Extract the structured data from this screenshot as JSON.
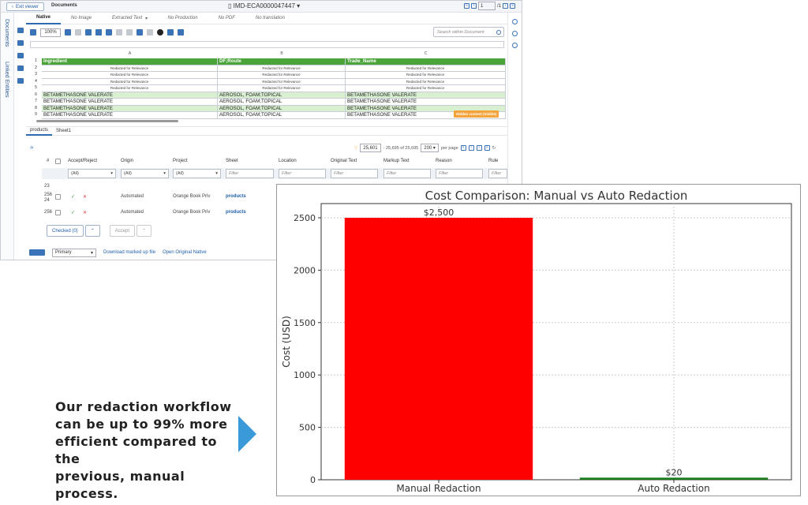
{
  "viewer": {
    "exit_label": "Exit viewer",
    "documents_label": "Documents",
    "doc_id": "IMD-ECA0000047447",
    "page_value": "1",
    "page_total": "/1",
    "left_rail": [
      "Documents",
      "Linked Entities"
    ],
    "tabs": [
      {
        "label": "Native",
        "active": true
      },
      {
        "label": "No Image"
      },
      {
        "label": "Extracted Text"
      },
      {
        "label": "No Production"
      },
      {
        "label": "No PDF"
      },
      {
        "label": "No translation"
      }
    ],
    "zoom": "100%",
    "search_placeholder": "Search within Document",
    "hidden_badge": "Hidden content (Visible)",
    "sheet": {
      "col_letters": [
        "A",
        "B",
        "C"
      ],
      "headers": [
        "Ingredient",
        "DF;Route",
        "Trade_Name"
      ],
      "redacted_text": "Redacted for Relevance",
      "rows": [
        {
          "n": "1",
          "kind": "header"
        },
        {
          "n": "2",
          "kind": "red"
        },
        {
          "n": "3",
          "kind": "red"
        },
        {
          "n": "4",
          "kind": "red"
        },
        {
          "n": "5",
          "kind": "red"
        },
        {
          "n": "6",
          "kind": "green",
          "a": "BETAMETHASONE VALERATE",
          "b": "AEROSOL, FOAM;TOPICAL",
          "c": "BETAMETHASONE VALERATE"
        },
        {
          "n": "7",
          "kind": "white",
          "a": "BETAMETHASONE VALERATE",
          "b": "AEROSOL, FOAM;TOPICAL",
          "c": "BETAMETHASONE VALERATE"
        },
        {
          "n": "8",
          "kind": "green",
          "a": "BETAMETHASONE VALERATE",
          "b": "AEROSOL, FOAM;TOPICAL",
          "c": "BETAMETHASONE VALERATE"
        },
        {
          "n": "9",
          "kind": "white",
          "a": "BETAMETHASONE VALERATE",
          "b": "AEROSOL, FOAM;TOPICAL",
          "c": "BETAMETHASONE VALERATE"
        }
      ]
    },
    "sheet_tabs": [
      "products",
      "Sheet1"
    ],
    "grid": {
      "page_value": "25,601",
      "range_text": "- 25,695 of 25,695",
      "per_page": "200",
      "per_page_label": "per page",
      "columns": [
        "#",
        "Accept/Reject",
        "Origin",
        "Project",
        "Sheet",
        "Location",
        "Original Text",
        "Markup Text",
        "Reason",
        "Rule"
      ],
      "filters": [
        "(All)",
        "(All)",
        "(All)",
        "Filter",
        "Filter",
        "Filter",
        "Filter",
        "Filter",
        "Filter"
      ],
      "rows": [
        {
          "num": "23",
          "origin": "",
          "project": "",
          "sheet": ""
        },
        {
          "num": "256 24",
          "origin": "Automated",
          "project": "Orange Book Priv",
          "sheet": "products"
        },
        {
          "num": "256",
          "origin": "Automated",
          "project": "Orange Book Priv",
          "sheet": "products"
        }
      ],
      "checked_label": "Checked (0)",
      "accept_label": "Accept"
    },
    "bottom": {
      "primary": "Primary",
      "download": "Download marked up file",
      "open_native": "Open Original Native"
    }
  },
  "chart_data": {
    "type": "bar",
    "title": "Cost Comparison: Manual vs Auto Redaction",
    "categories": [
      "Manual Redaction",
      "Auto Redaction"
    ],
    "values": [
      2500,
      20
    ],
    "data_labels": [
      "$2,500",
      "$20"
    ],
    "colors": [
      "#ff0000",
      "#1a7a1a"
    ],
    "ylabel": "Cost (USD)",
    "xlabel": "",
    "ylim": [
      0,
      2500
    ],
    "yticks": [
      0,
      500,
      1000,
      1500,
      2000,
      2500
    ],
    "grid": true
  },
  "callout": {
    "lines": [
      "Our redaction workflow",
      "can be up to 99% more",
      "efficient compared to the",
      "previous, manual process."
    ],
    "arrow_color": "#3a9ad9"
  }
}
